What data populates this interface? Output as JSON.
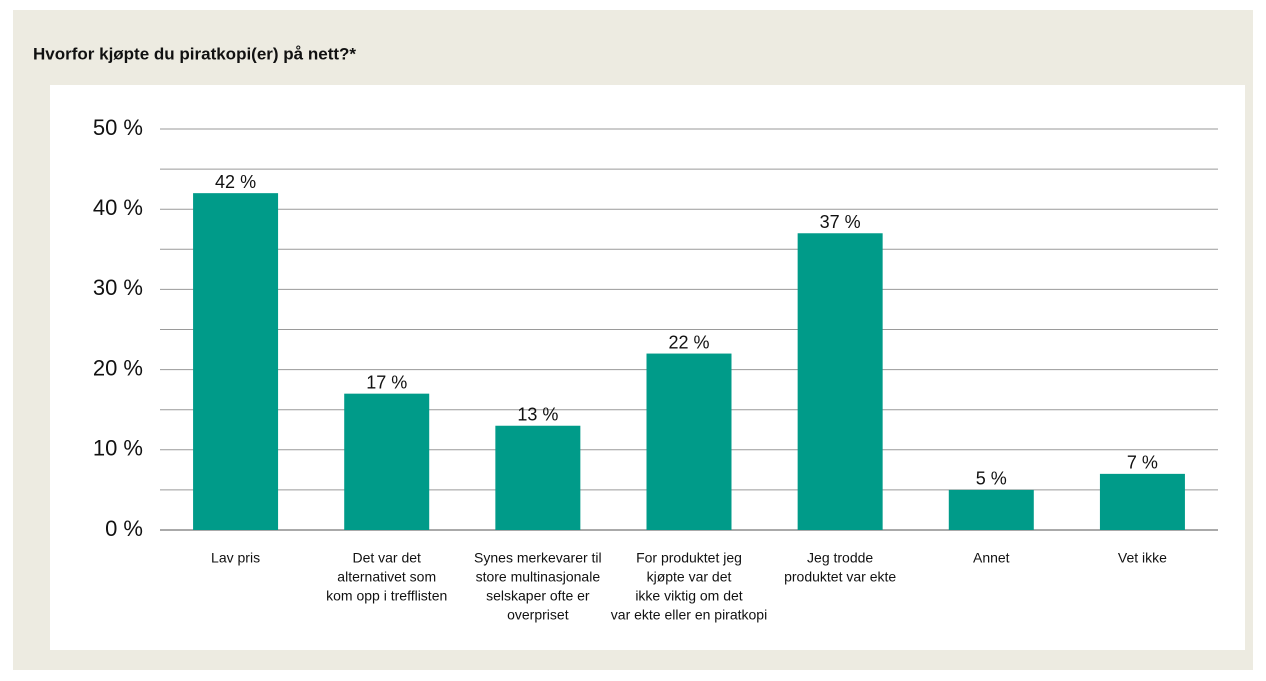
{
  "chart_data": {
    "type": "bar",
    "title": "Hvorfor kjøpte du piratkopi(er) på nett?*",
    "categories": [
      [
        "Lav pris"
      ],
      [
        "Det var det",
        "alternativet som",
        "kom opp i trefflisten"
      ],
      [
        "Synes merkevarer til",
        "store multinasjonale",
        "selskaper ofte er",
        "overpriset"
      ],
      [
        "For produktet jeg",
        "kjøpte var det",
        "ikke viktig om det",
        "var ekte eller en piratkopi"
      ],
      [
        "Jeg trodde",
        "produktet var ekte"
      ],
      [
        "Annet"
      ],
      [
        "Vet ikke"
      ]
    ],
    "values": [
      42,
      17,
      13,
      22,
      37,
      5,
      7
    ],
    "value_labels": [
      "42 %",
      "17 %",
      "13 %",
      "22 %",
      "37 %",
      "5 %",
      "7 %"
    ],
    "color": "#009b89",
    "ylim": [
      0,
      50
    ],
    "yticks": [
      {
        "value": 0,
        "label": "0 %"
      },
      {
        "value": 10,
        "label": "10 %"
      },
      {
        "value": 20,
        "label": "20 %"
      },
      {
        "value": 30,
        "label": "30 %"
      },
      {
        "value": 40,
        "label": "40 %"
      },
      {
        "value": 50,
        "label": "50 %"
      }
    ],
    "yminor": [
      5,
      15,
      25,
      35,
      45
    ],
    "grid": true
  }
}
